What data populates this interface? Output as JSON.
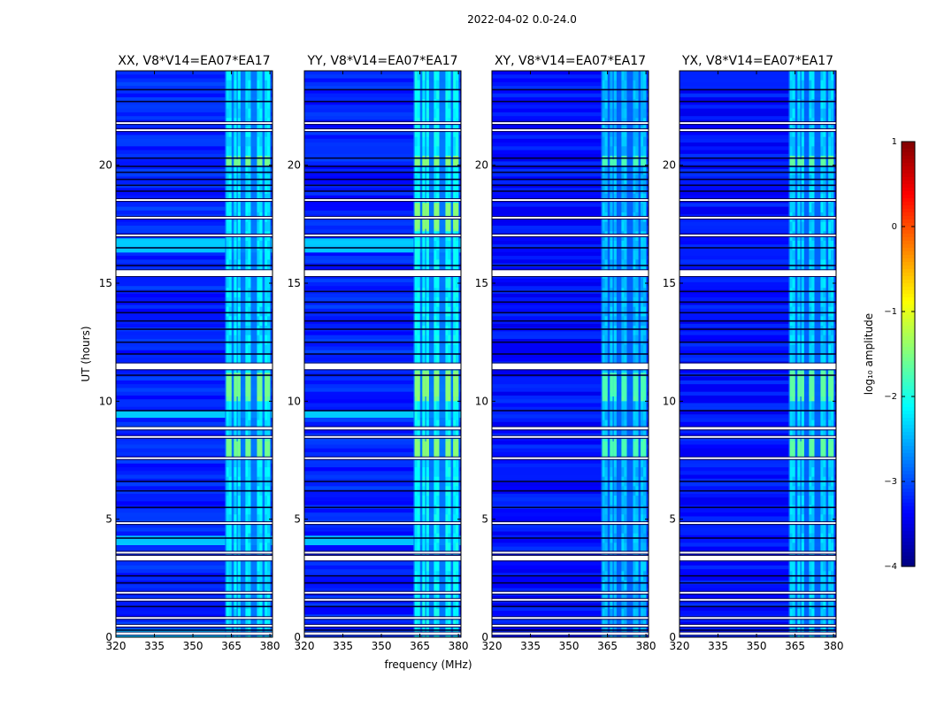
{
  "figure": {
    "suptitle": "2022-04-02 0.0-24.0"
  },
  "colors": {
    "colormap": "jet",
    "gap_color": "#ffffff",
    "axis_color": "#000000"
  },
  "chart_data": {
    "type": "heatmap",
    "title": "2022-04-02 0.0-24.0",
    "xlabel": "frequency (MHz)",
    "ylabel": "UT (hours)",
    "xlim": [
      320,
      381
    ],
    "ylim": [
      0,
      24
    ],
    "xticks": [
      320,
      335,
      350,
      365,
      380
    ],
    "yticks": [
      0,
      5,
      10,
      15,
      20
    ],
    "colorbar": {
      "label": "log₁₀ amplitude",
      "min": -4,
      "max": 1,
      "ticks": [
        1,
        0,
        -1,
        -2,
        -3,
        -4
      ],
      "tick_labels": [
        "1",
        "0",
        "−1",
        "−2",
        "−3",
        "−4"
      ]
    },
    "rfi_band_mhz": [
      362.5,
      380.5
    ],
    "rfi_channels_mhz": [
      363.5,
      364.5,
      366.5,
      368.0,
      371.0,
      372.0,
      375.5,
      376.5,
      378.5,
      379.5
    ],
    "flagged_ut_ranges": [
      [
        0.1,
        0.2
      ],
      [
        0.45,
        0.52
      ],
      [
        0.78,
        0.85
      ],
      [
        1.55,
        1.62
      ],
      [
        1.85,
        1.92
      ],
      [
        3.25,
        3.45
      ],
      [
        3.55,
        3.62
      ],
      [
        4.8,
        4.87
      ],
      [
        7.55,
        7.62
      ],
      [
        8.45,
        8.52
      ],
      [
        8.8,
        8.9
      ],
      [
        11.35,
        11.6
      ],
      [
        15.3,
        15.55
      ],
      [
        17.0,
        17.06
      ],
      [
        17.75,
        17.81
      ],
      [
        18.5,
        18.56
      ],
      [
        21.45,
        21.52
      ],
      [
        21.75,
        21.82
      ]
    ],
    "dark_ut_lines": [
      0.3,
      1.3,
      2.3,
      2.6,
      4.2,
      5.5,
      6.2,
      6.6,
      9.6,
      11.1,
      12.0,
      12.5,
      13.05,
      13.4,
      13.75,
      14.2,
      14.65,
      15.75,
      16.5,
      18.9,
      19.15,
      19.4,
      19.7,
      19.95,
      20.3,
      22.7,
      23.2
    ],
    "panels": [
      {
        "name": "XX, V8*V14=EA07*EA17",
        "background_log10_amp": -3.2,
        "rfi_log10_amp": -2.1,
        "bright_ut_ranges": [
          [
            7.6,
            8.3
          ],
          [
            10.2,
            11.2
          ],
          [
            19.95,
            20.25
          ]
        ],
        "wideband_ut_ranges": [
          [
            0.0,
            0.35
          ],
          [
            3.9,
            4.3
          ],
          [
            9.3,
            9.6
          ],
          [
            16.3,
            16.9
          ]
        ]
      },
      {
        "name": "YY, V8*V14=EA07*EA17",
        "background_log10_amp": -3.2,
        "rfi_log10_amp": -2.0,
        "bright_ut_ranges": [
          [
            7.6,
            8.3
          ],
          [
            10.2,
            11.3
          ],
          [
            17.3,
            18.4
          ],
          [
            19.95,
            20.25
          ]
        ],
        "wideband_ut_ranges": [
          [
            3.9,
            4.3
          ],
          [
            9.3,
            9.6
          ],
          [
            16.3,
            16.9
          ]
        ]
      },
      {
        "name": "XY, V8*V14=EA07*EA17",
        "background_log10_amp": -3.3,
        "rfi_log10_amp": -2.3,
        "bright_ut_ranges": [
          [
            7.6,
            8.3
          ],
          [
            10.2,
            11.2
          ],
          [
            19.95,
            20.25
          ]
        ],
        "wideband_ut_ranges": []
      },
      {
        "name": "YX, V8*V14=EA07*EA17",
        "background_log10_amp": -3.3,
        "rfi_log10_amp": -2.2,
        "bright_ut_ranges": [
          [
            7.6,
            8.3
          ],
          [
            10.2,
            11.3
          ],
          [
            19.95,
            20.25
          ]
        ],
        "wideband_ut_ranges": []
      }
    ]
  }
}
